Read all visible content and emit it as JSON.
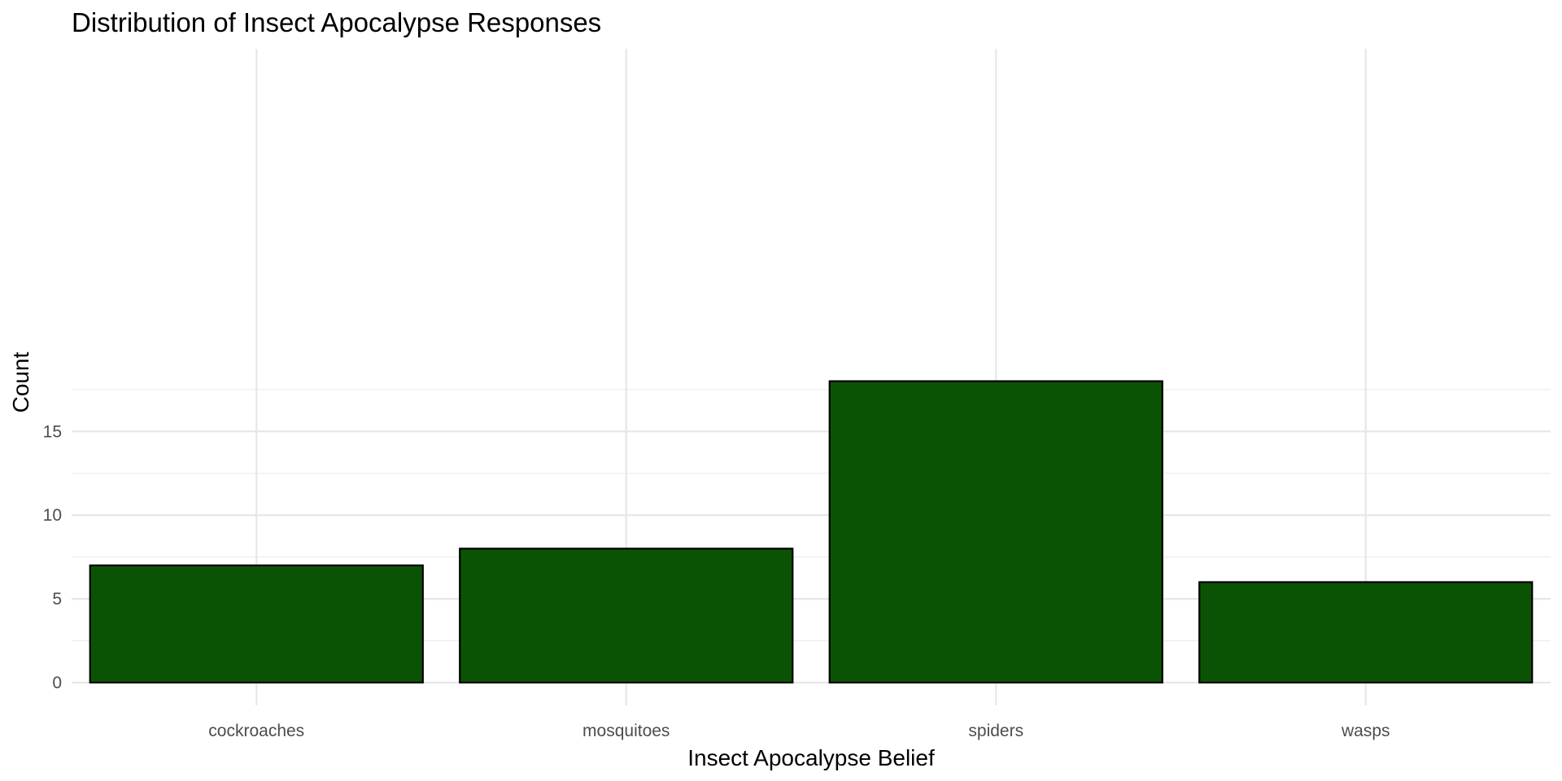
{
  "chart_data": {
    "type": "bar",
    "title": "Distribution of Insect Apocalypse Responses",
    "xlabel": "Insect Apocalypse Belief",
    "ylabel": "Count",
    "categories": [
      "cockroaches",
      "mosquitoes",
      "spiders",
      "wasps"
    ],
    "values": [
      7,
      8,
      18,
      6
    ],
    "ylim": [
      0,
      18.9
    ],
    "yticks": [
      0,
      5,
      10,
      15
    ],
    "grid": true,
    "legend": "none",
    "colors": {
      "bar_fill": "#0B5304",
      "bar_stroke": "#000000"
    }
  }
}
